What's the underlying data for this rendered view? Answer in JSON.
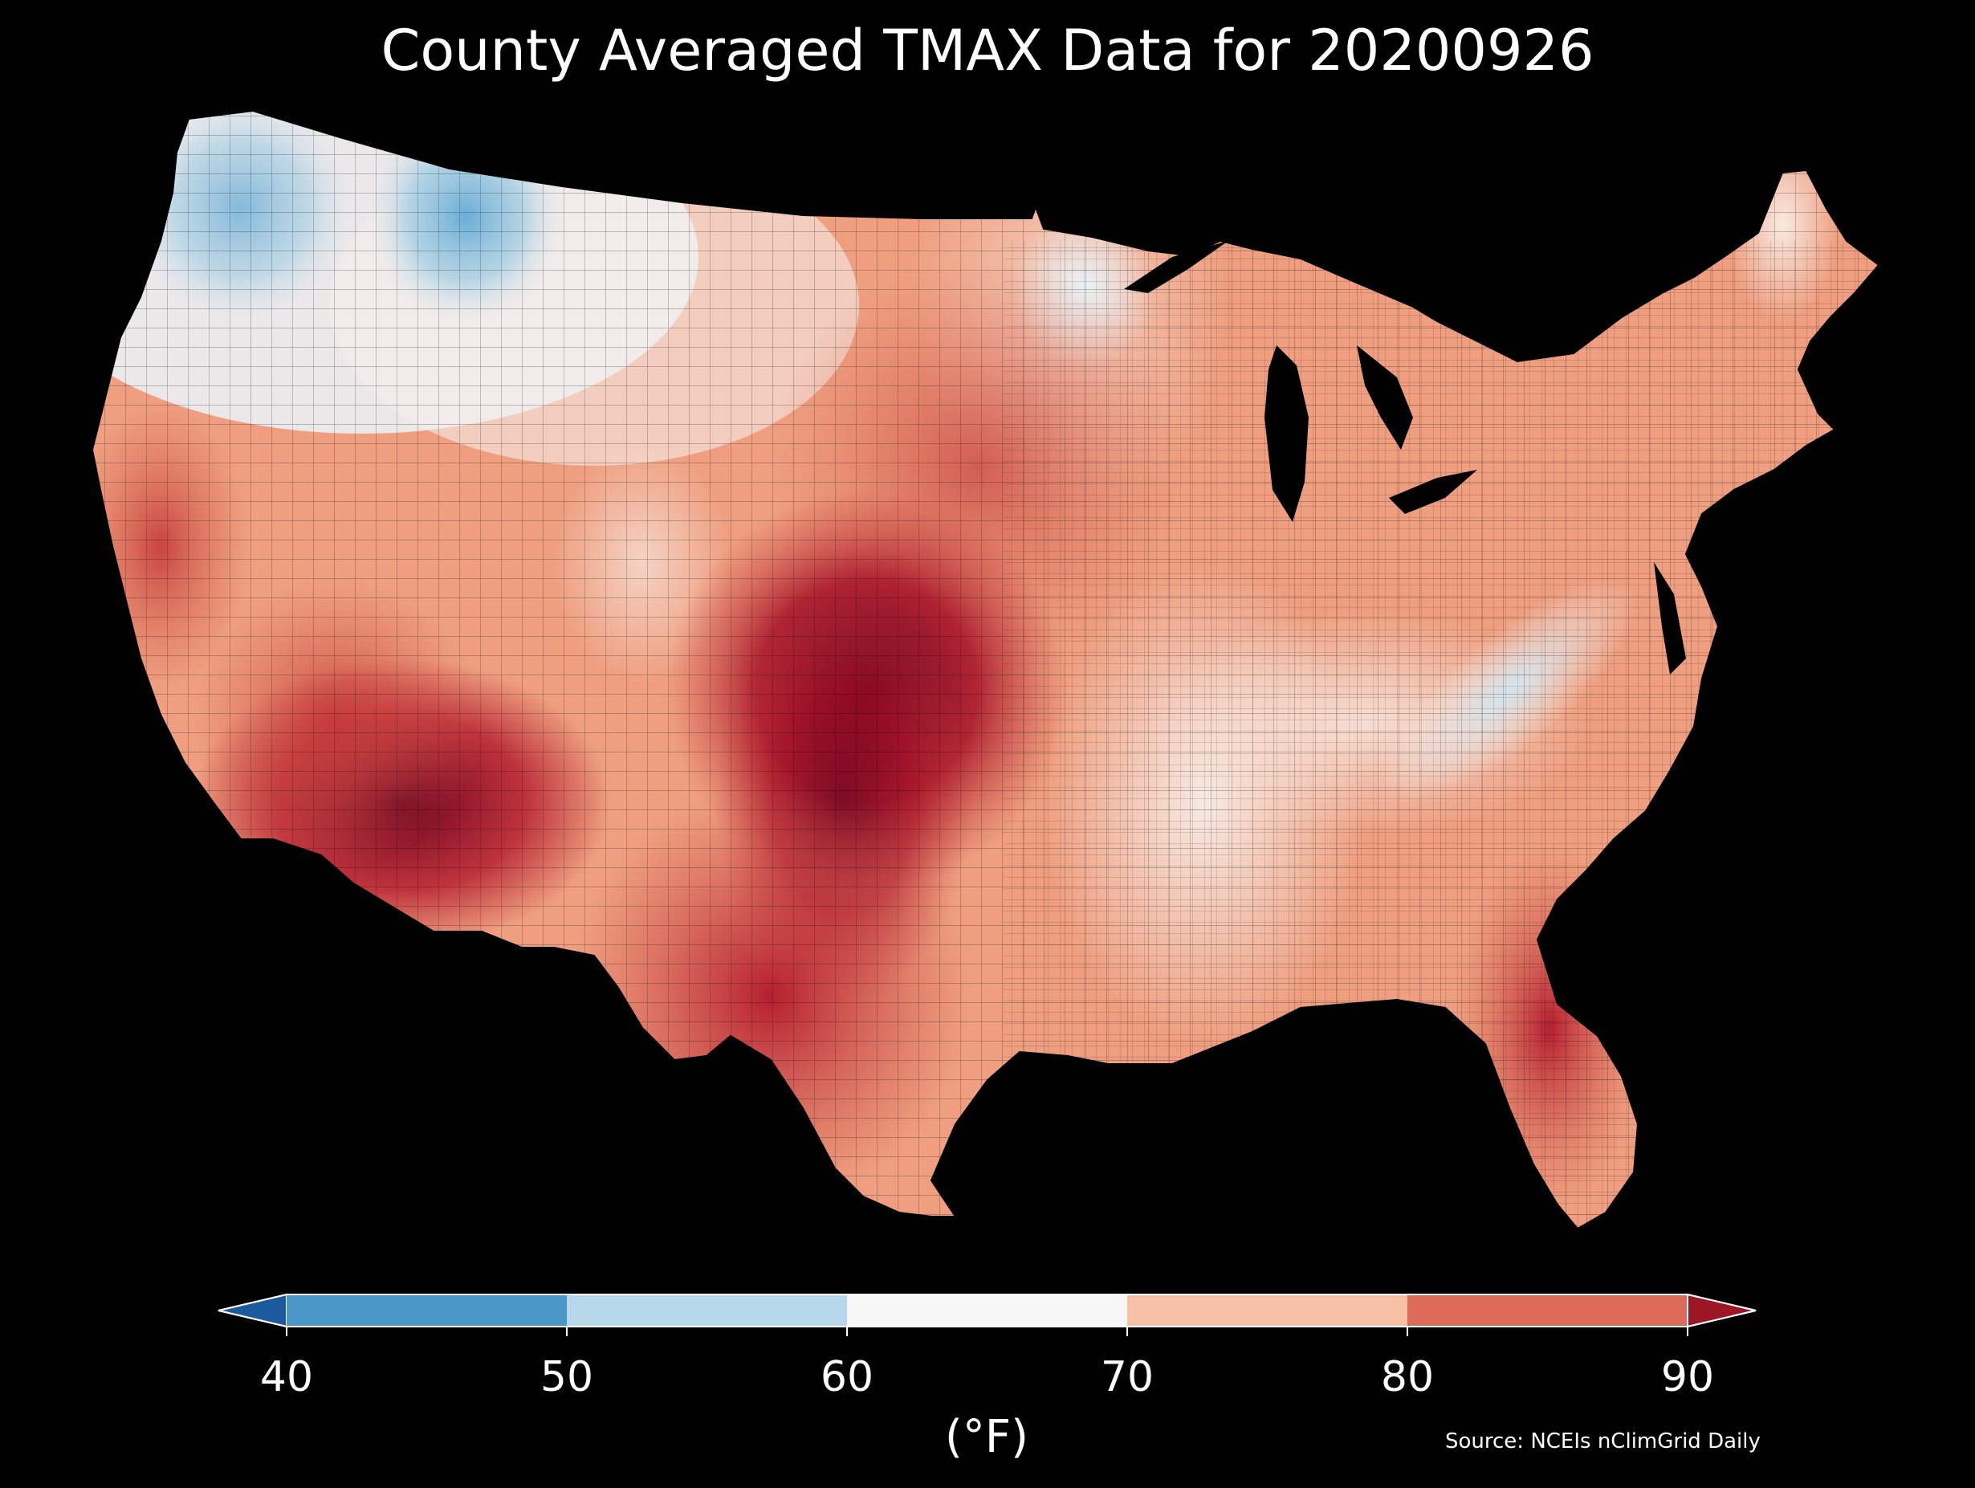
{
  "title": "County Averaged TMAX Data for 20200926",
  "source": "Source: NCEIs nClimGrid Daily",
  "colorbar": {
    "label": "(°F)",
    "ticks": [
      "40",
      "50",
      "60",
      "70",
      "80",
      "90"
    ],
    "bins": [
      {
        "range": [
          40,
          50
        ],
        "color": "#4b98c8"
      },
      {
        "range": [
          50,
          60
        ],
        "color": "#b7d8ea"
      },
      {
        "range": [
          60,
          70
        ],
        "color": "#f7f6f6"
      },
      {
        "range": [
          70,
          80
        ],
        "color": "#f8c0a4"
      },
      {
        "range": [
          80,
          90
        ],
        "color": "#dc6b5a"
      }
    ],
    "under_color": "#1b5a9d",
    "over_color": "#9d1626",
    "extend": "both"
  },
  "map": {
    "region": "Contiguous United States",
    "variable": "TMAX",
    "unit": "°F",
    "background": "#000000",
    "boundary_color": "#000000"
  }
}
